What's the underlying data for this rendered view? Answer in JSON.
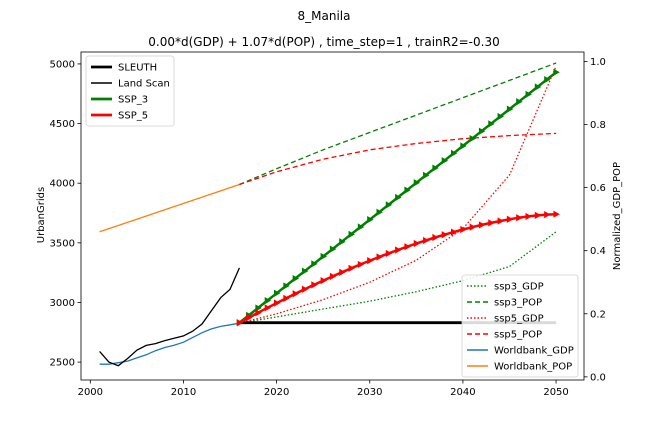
{
  "chart_data": {
    "type": "line",
    "suptitle": "8_Manila",
    "title": "0.00*d(GDP) + 1.07*d(POP) , time_step=1 , trainR2=-0.30",
    "xlabel": "",
    "ylabel_left": "UrbanGrids",
    "ylabel_right": "Normalized_GDP_POP",
    "xlim": [
      1999,
      2053
    ],
    "ylim_left": [
      2350,
      5100
    ],
    "ylim_right": [
      -0.01,
      1.03
    ],
    "xticks": [
      2000,
      2010,
      2020,
      2030,
      2040,
      2050
    ],
    "yticks_left": [
      2500,
      3000,
      3500,
      4000,
      4500,
      5000
    ],
    "yticks_right": [
      0.0,
      0.2,
      0.4,
      0.6,
      0.8,
      1.0
    ],
    "grid": false,
    "legend_left": {
      "placement": "upper-left",
      "entries": [
        {
          "label": "SLEUTH",
          "color": "#000000",
          "style": "solid-thick"
        },
        {
          "label": "Land Scan",
          "color": "#000000",
          "style": "solid"
        },
        {
          "label": "SSP_3",
          "color": "#008000",
          "style": "solid-thick"
        },
        {
          "label": "SSP_5",
          "color": "#ff0000",
          "style": "solid-thick"
        }
      ]
    },
    "legend_right": {
      "placement": "lower-right",
      "entries": [
        {
          "label": "ssp3_GDP",
          "color": "#008000",
          "style": "dotted"
        },
        {
          "label": "ssp3_POP",
          "color": "#008000",
          "style": "dashed"
        },
        {
          "label": "ssp5_GDP",
          "color": "#ff0000",
          "style": "dotted"
        },
        {
          "label": "ssp5_POP",
          "color": "#ff0000",
          "style": "dashed"
        },
        {
          "label": "Worldbank_GDP",
          "color": "#1f77b4",
          "style": "solid"
        },
        {
          "label": "Worldbank_POP",
          "color": "#ff7f0e",
          "style": "solid"
        }
      ]
    },
    "series_left": [
      {
        "name": "SLEUTH",
        "color": "#000000",
        "style": "solid-thick",
        "x": [
          2016,
          2050
        ],
        "y": [
          2830,
          2830
        ]
      },
      {
        "name": "Land Scan",
        "color": "#000000",
        "style": "solid",
        "x": [
          2001,
          2002,
          2003,
          2004,
          2005,
          2006,
          2007,
          2008,
          2009,
          2010,
          2011,
          2012,
          2013,
          2014,
          2015,
          2016
        ],
        "y": [
          2590,
          2500,
          2470,
          2530,
          2600,
          2640,
          2655,
          2680,
          2700,
          2720,
          2760,
          2820,
          2930,
          3040,
          3110,
          3290
        ]
      },
      {
        "name": "SSP_3",
        "color": "#008000",
        "style": "solid-markers",
        "x_start": 2016,
        "x_end": 2050,
        "y_start": 2830,
        "y_end": 4930,
        "shape": "linear"
      },
      {
        "name": "SSP_5",
        "color": "#ff0000",
        "style": "solid-markers",
        "x_start": 2016,
        "x_end": 2050,
        "y_start": 2830,
        "y_end": 3740,
        "shape": "concave"
      }
    ],
    "series_right": [
      {
        "name": "Worldbank_GDP",
        "color": "#1f77b4",
        "style": "solid",
        "x": [
          2001,
          2002,
          2003,
          2004,
          2005,
          2006,
          2007,
          2008,
          2009,
          2010,
          2011,
          2012,
          2013,
          2014,
          2015,
          2016
        ],
        "y": [
          0.04,
          0.04,
          0.045,
          0.05,
          0.06,
          0.07,
          0.083,
          0.093,
          0.1,
          0.11,
          0.125,
          0.14,
          0.152,
          0.16,
          0.165,
          0.17
        ]
      },
      {
        "name": "Worldbank_POP",
        "color": "#ff7f0e",
        "style": "solid",
        "x": [
          2001,
          2016
        ],
        "y": [
          0.46,
          0.61
        ]
      },
      {
        "name": "ssp3_POP",
        "color": "#008000",
        "style": "dashed",
        "x": [
          2016,
          2020,
          2025,
          2030,
          2035,
          2040,
          2045,
          2050
        ],
        "y": [
          0.61,
          0.66,
          0.72,
          0.775,
          0.83,
          0.885,
          0.94,
          0.995
        ]
      },
      {
        "name": "ssp5_POP",
        "color": "#ff0000",
        "style": "dashed",
        "x": [
          2016,
          2020,
          2025,
          2030,
          2035,
          2040,
          2045,
          2050
        ],
        "y": [
          0.61,
          0.65,
          0.69,
          0.72,
          0.74,
          0.755,
          0.765,
          0.772
        ]
      },
      {
        "name": "ssp3_GDP",
        "color": "#008000",
        "style": "dotted",
        "x": [
          2016,
          2020,
          2025,
          2030,
          2035,
          2040,
          2045,
          2050
        ],
        "y": [
          0.17,
          0.19,
          0.215,
          0.24,
          0.27,
          0.305,
          0.35,
          0.46
        ]
      },
      {
        "name": "ssp5_GDP",
        "color": "#ff0000",
        "style": "dotted",
        "x": [
          2016,
          2020,
          2025,
          2030,
          2035,
          2040,
          2045,
          2050
        ],
        "y": [
          0.17,
          0.2,
          0.245,
          0.3,
          0.37,
          0.47,
          0.64,
          0.985
        ]
      }
    ]
  }
}
